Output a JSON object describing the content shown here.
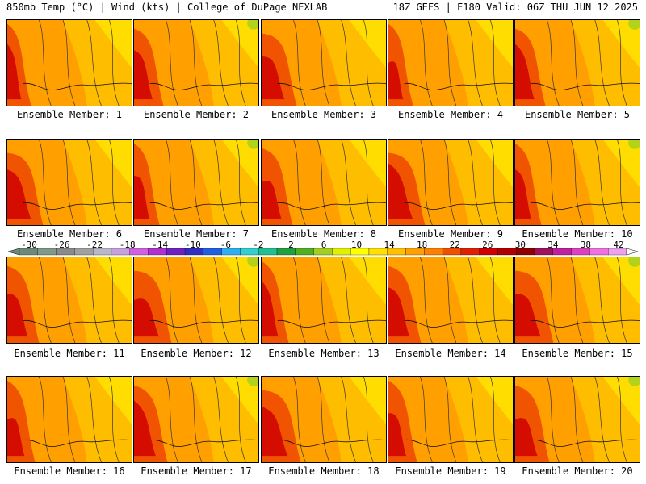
{
  "header": {
    "left": "850mb Temp (°C) | Wind (kts) | College of DuPage NEXLAB",
    "right": "18Z GEFS | F180 Valid: 06Z THU JUN 12 2025"
  },
  "members": [
    "Ensemble Member: 1",
    "Ensemble Member: 2",
    "Ensemble Member: 3",
    "Ensemble Member: 4",
    "Ensemble Member: 5",
    "Ensemble Member: 6",
    "Ensemble Member: 7",
    "Ensemble Member: 8",
    "Ensemble Member: 9",
    "Ensemble Member: 10",
    "Ensemble Member: 11",
    "Ensemble Member: 12",
    "Ensemble Member: 13",
    "Ensemble Member: 14",
    "Ensemble Member: 15",
    "Ensemble Member: 16",
    "Ensemble Member: 17",
    "Ensemble Member: 18",
    "Ensemble Member: 19",
    "Ensemble Member: 20"
  ],
  "colorbar": {
    "labels": [
      "-30",
      "-26",
      "-22",
      "-18",
      "-14",
      "-10",
      "-6",
      "-2",
      "2",
      "6",
      "10",
      "14",
      "18",
      "22",
      "26",
      "30",
      "34",
      "38",
      "42"
    ],
    "colors": [
      "#6b8a78",
      "#7f9a88",
      "#8a8a8a",
      "#a0a0a0",
      "#b8b8c8",
      "#c8a0e0",
      "#d060e0",
      "#b030d0",
      "#7020c0",
      "#3030c0",
      "#2060e0",
      "#30b0f0",
      "#30d0d0",
      "#20c090",
      "#20a040",
      "#50b020",
      "#a0d020",
      "#e0f000",
      "#ffff00",
      "#ffe000",
      "#ffc000",
      "#ffa000",
      "#ff8000",
      "#f05000",
      "#e02000",
      "#d00000",
      "#b00000",
      "#900000",
      "#a01060",
      "#c020a0",
      "#e040c0",
      "#f070e0",
      "#f0a0f0"
    ]
  }
}
